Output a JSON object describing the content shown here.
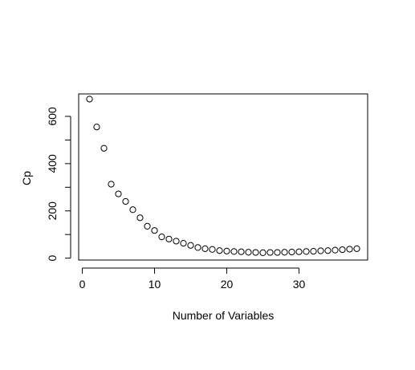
{
  "chart_data": {
    "type": "scatter",
    "title": "",
    "xlabel": "Number of Variables",
    "ylabel": "Cp",
    "xlim": [
      -0.5,
      39.5
    ],
    "ylim": [
      -8,
      695
    ],
    "x_ticks": [
      0,
      10,
      20,
      30
    ],
    "y_ticks": [
      0,
      200,
      400,
      600
    ],
    "y_minor_ticks": [
      100,
      300,
      500
    ],
    "grid": false,
    "legend": "none",
    "marker": "open-circle",
    "colors": {
      "marker": "#000000",
      "axis": "#000000",
      "background": "#ffffff"
    },
    "points": [
      {
        "x": 1,
        "y": 673
      },
      {
        "x": 2,
        "y": 555
      },
      {
        "x": 3,
        "y": 465
      },
      {
        "x": 4,
        "y": 313
      },
      {
        "x": 5,
        "y": 272
      },
      {
        "x": 6,
        "y": 240
      },
      {
        "x": 7,
        "y": 205
      },
      {
        "x": 8,
        "y": 171
      },
      {
        "x": 9,
        "y": 135
      },
      {
        "x": 10,
        "y": 117
      },
      {
        "x": 11,
        "y": 90
      },
      {
        "x": 12,
        "y": 81
      },
      {
        "x": 13,
        "y": 72
      },
      {
        "x": 14,
        "y": 63
      },
      {
        "x": 15,
        "y": 54
      },
      {
        "x": 16,
        "y": 45
      },
      {
        "x": 17,
        "y": 40
      },
      {
        "x": 18,
        "y": 37
      },
      {
        "x": 19,
        "y": 32
      },
      {
        "x": 20,
        "y": 30
      },
      {
        "x": 21,
        "y": 28
      },
      {
        "x": 22,
        "y": 27
      },
      {
        "x": 23,
        "y": 25
      },
      {
        "x": 24,
        "y": 24
      },
      {
        "x": 25,
        "y": 23
      },
      {
        "x": 26,
        "y": 24
      },
      {
        "x": 27,
        "y": 24
      },
      {
        "x": 28,
        "y": 25
      },
      {
        "x": 29,
        "y": 26
      },
      {
        "x": 30,
        "y": 27
      },
      {
        "x": 31,
        "y": 28
      },
      {
        "x": 32,
        "y": 29
      },
      {
        "x": 33,
        "y": 31
      },
      {
        "x": 34,
        "y": 32
      },
      {
        "x": 35,
        "y": 34
      },
      {
        "x": 36,
        "y": 36
      },
      {
        "x": 37,
        "y": 38
      },
      {
        "x": 38,
        "y": 40
      }
    ]
  }
}
